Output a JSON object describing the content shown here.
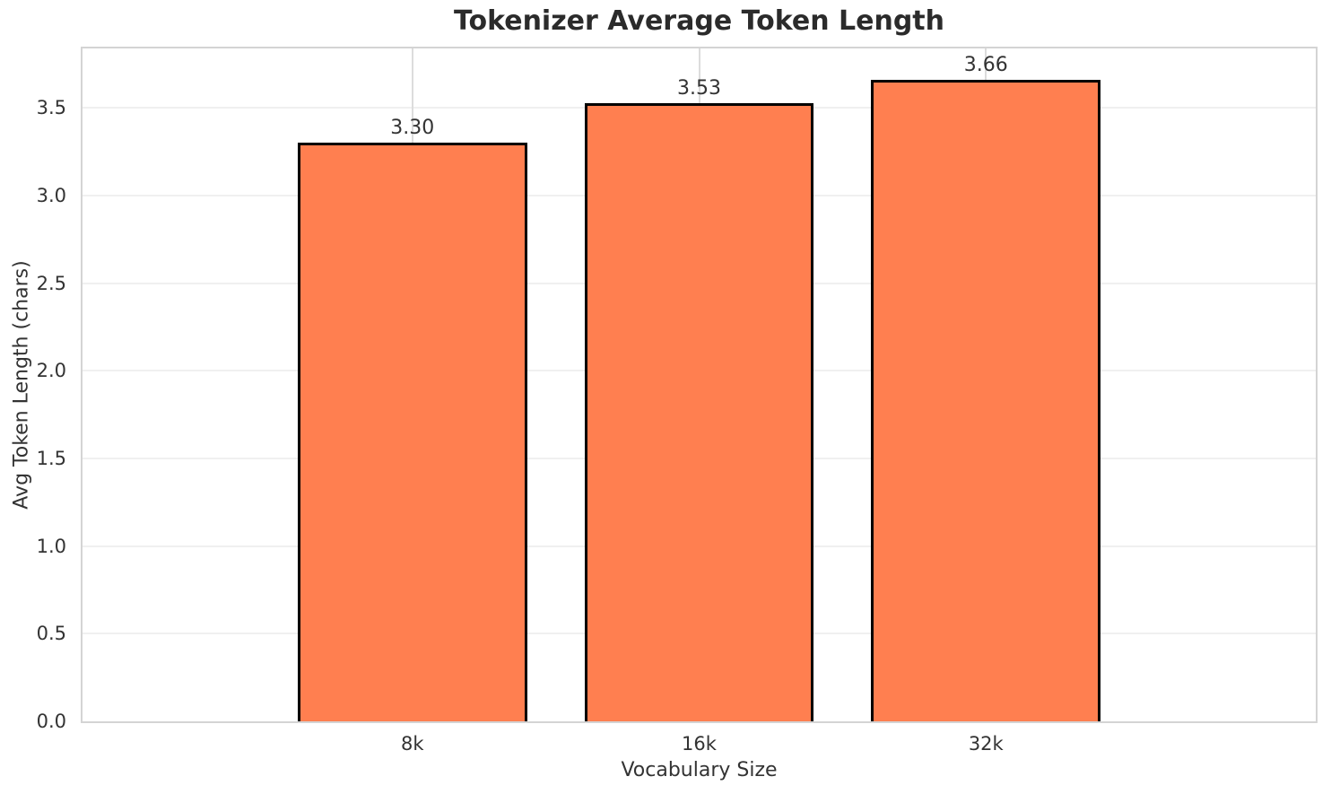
{
  "chart_data": {
    "type": "bar",
    "title": "Tokenizer Average Token Length",
    "xlabel": "Vocabulary Size",
    "ylabel": "Avg Token Length (chars)",
    "categories": [
      "8k",
      "16k",
      "32k"
    ],
    "values": [
      3.3,
      3.53,
      3.66
    ],
    "bar_labels": [
      "3.30",
      "3.53",
      "3.66"
    ],
    "ylim": [
      0,
      3.84
    ],
    "yticks": [
      0.0,
      0.5,
      1.0,
      1.5,
      2.0,
      2.5,
      3.0,
      3.5
    ],
    "ytick_labels": [
      "0.0",
      "0.5",
      "1.0",
      "1.5",
      "2.0",
      "2.5",
      "3.0",
      "3.5"
    ],
    "grid": "both",
    "legend_position": "none",
    "bar_relative_width": 0.8,
    "colors": {
      "bar_fill": "#ff7f50",
      "bar_edge": "#000000",
      "title_text": "#2b2b2b",
      "tick_text": "#333333",
      "grid_horizontal": "#f0f0f0",
      "grid_vertical": "#dcdcdc",
      "spine": "#d4d4d4",
      "background": "#ffffff"
    }
  }
}
